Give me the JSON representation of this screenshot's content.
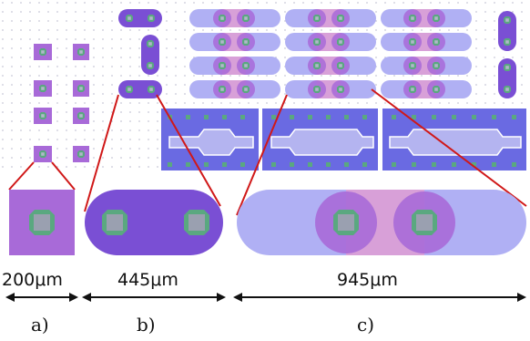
{
  "figure": {
    "dimensions": {
      "a": "200μm",
      "b": "445μm",
      "c": "945μm"
    },
    "panels": {
      "a": "a)",
      "b": "b)",
      "c": "c)"
    }
  },
  "colors": {
    "pad": "#a86ad8",
    "stadium_dark": "#7a4fd4",
    "stadium_light": "#b0b0f4",
    "stadium_mid": "#9a8ae6",
    "circle": "#a86ad8",
    "center_pink": "#d8a0d8",
    "via_green": "#5aa880",
    "via_gray": "#9aa0b0",
    "block_blue": "#6a6ae2",
    "block_inner": "#b4b4f0",
    "zoom_line": "#d01818",
    "dot": "#c8c8d8"
  }
}
